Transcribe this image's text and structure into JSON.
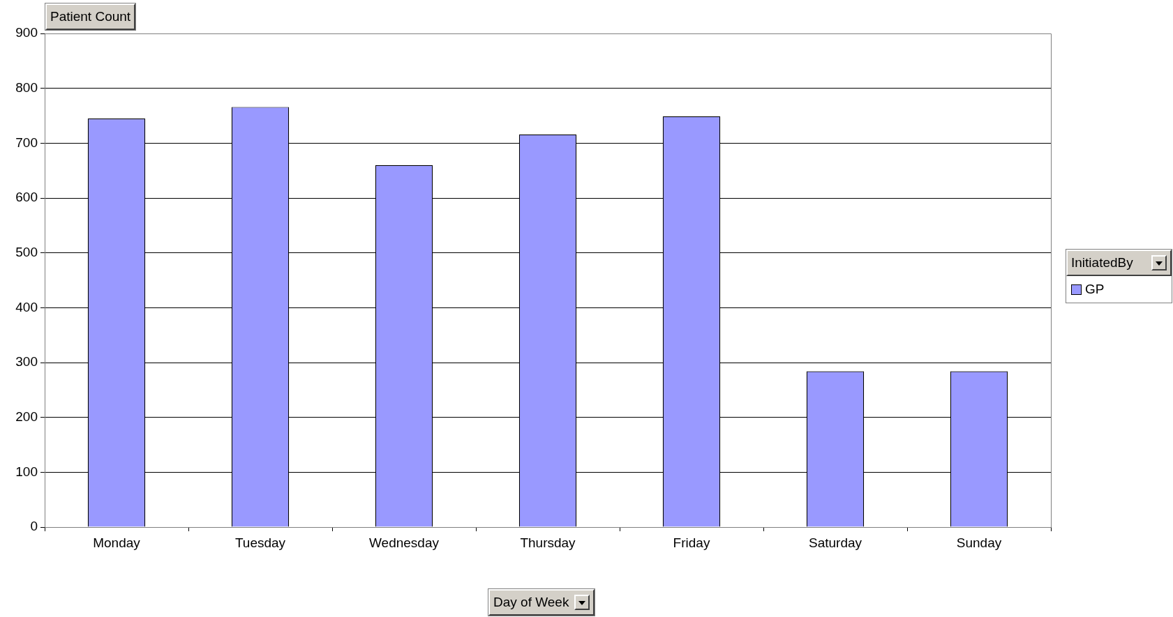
{
  "chart_data": {
    "type": "bar",
    "ylabel": "Patient Count",
    "xlabel": "Day of Week",
    "legend_title": "InitiatedBy",
    "categories": [
      "Monday",
      "Tuesday",
      "Wednesday",
      "Thursday",
      "Friday",
      "Saturday",
      "Sunday"
    ],
    "series": [
      {
        "name": "GP",
        "color": "#9999ff",
        "values": [
          745,
          766,
          660,
          716,
          749,
          284,
          284
        ]
      }
    ],
    "ylim": [
      0,
      900
    ],
    "yticks": [
      0,
      100,
      200,
      300,
      400,
      500,
      600,
      700,
      800,
      900
    ],
    "grid": "y",
    "legend": "right"
  }
}
